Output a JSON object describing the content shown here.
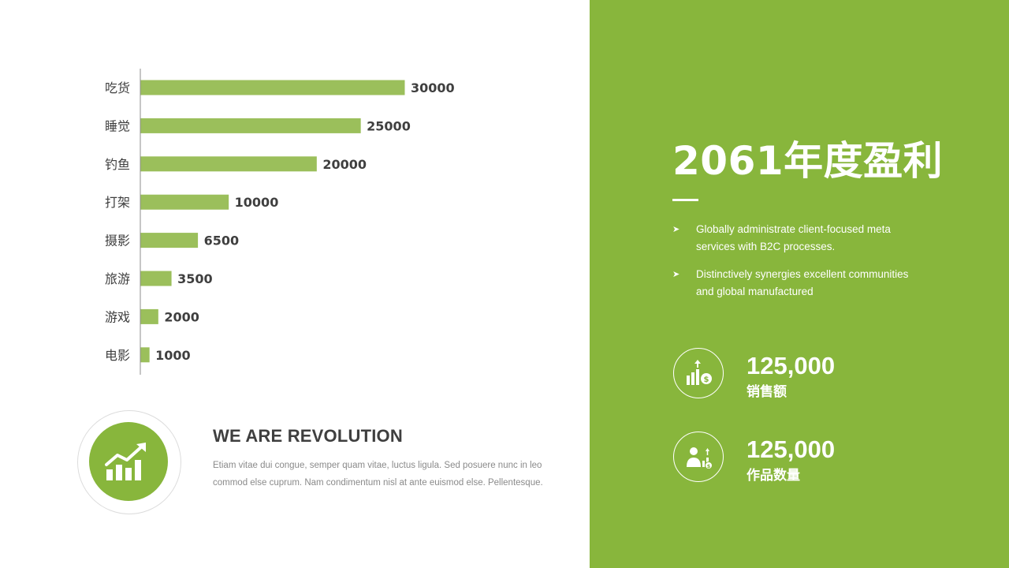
{
  "chart_data": {
    "type": "bar",
    "orientation": "horizontal",
    "categories": [
      "吃货",
      "睡觉",
      "钓鱼",
      "打架",
      "摄影",
      "旅游",
      "游戏",
      "电影"
    ],
    "values": [
      30000,
      25000,
      20000,
      10000,
      6500,
      3500,
      2000,
      1000
    ],
    "data_labels": [
      "30000",
      "25000",
      "20000",
      "10000",
      "6500",
      "3500",
      "2000",
      "1000"
    ],
    "xlim": [
      0,
      30000
    ],
    "grid": false,
    "legend": "none",
    "bar_color": "#9bbf5b"
  },
  "revolution": {
    "title": "WE ARE REVOLUTION",
    "body": "Etiam vitae dui congue, semper quam vitae, luctus ligula. Sed posuere nunc in leo commod else cuprum. Nam condimentum nisl at ante euismod else. Pellentesque."
  },
  "panel": {
    "title": "2061年度盈利",
    "bullets": [
      "Globally administrate client-focused meta services with B2C processes.",
      "Distinctively synergies excellent communities and global manufactured"
    ],
    "stats": [
      {
        "value": "125,000",
        "label": "销售额",
        "icon": "revenue-growth-icon"
      },
      {
        "value": "125,000",
        "label": "作品数量",
        "icon": "person-growth-icon"
      }
    ]
  },
  "colors": {
    "accent": "#88b63c",
    "bar": "#9bbf5b",
    "text_dark": "#3f3f3f",
    "text_muted": "#8a8a8a"
  }
}
